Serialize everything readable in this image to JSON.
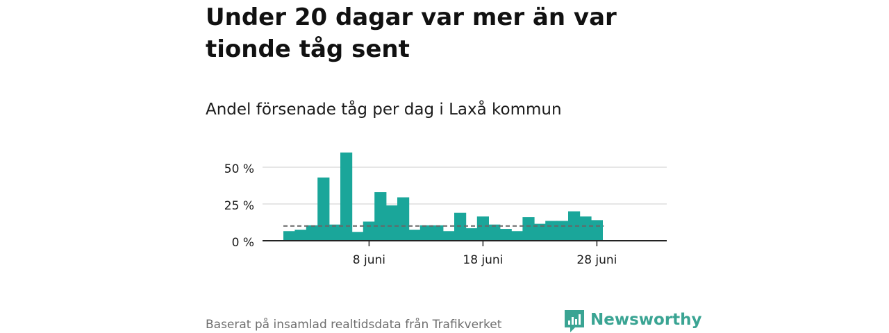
{
  "title": "Under 20 dagar var mer än var tionde tåg sent",
  "subtitle": "Andel försenade tåg per dag i Laxå kommun",
  "source": "Baserat på insamlad realtidsdata från Trafikverket",
  "brand": {
    "name": "Newsworthy",
    "icon": "newsworthy-logo-icon",
    "color": "#3aa493"
  },
  "colors": {
    "bar": "#1aa69a",
    "grid": "#dddddd",
    "axis": "#222222",
    "reference": "#666666"
  },
  "chart_data": {
    "type": "bar",
    "x": [
      "1 juni",
      "2 juni",
      "3 juni",
      "4 juni",
      "5 juni",
      "6 juni",
      "7 juni",
      "8 juni",
      "9 juni",
      "10 juni",
      "11 juni",
      "12 juni",
      "13 juni",
      "14 juni",
      "15 juni",
      "16 juni",
      "17 juni",
      "18 juni",
      "19 juni",
      "20 juni",
      "21 juni",
      "22 juni",
      "23 juni",
      "24 juni",
      "25 juni",
      "26 juni",
      "27 juni",
      "28 juni"
    ],
    "values": [
      6.5,
      7.5,
      10.5,
      43,
      11,
      60,
      6,
      13,
      33,
      24,
      29.5,
      7.5,
      10.5,
      10.5,
      6.5,
      19,
      8.5,
      16.5,
      11,
      8,
      6.5,
      16,
      11.5,
      13.5,
      13.5,
      20,
      16.5,
      14
    ],
    "reference_line": 10,
    "reference_line_style": "dashed",
    "yticks": [
      0,
      25,
      50
    ],
    "ytick_labels": [
      "0 %",
      "25 %",
      "50 %"
    ],
    "xticks": [
      "8 juni",
      "18 juni",
      "28 juni"
    ],
    "ylim": [
      0,
      60
    ],
    "grid": true,
    "legend": "none"
  }
}
